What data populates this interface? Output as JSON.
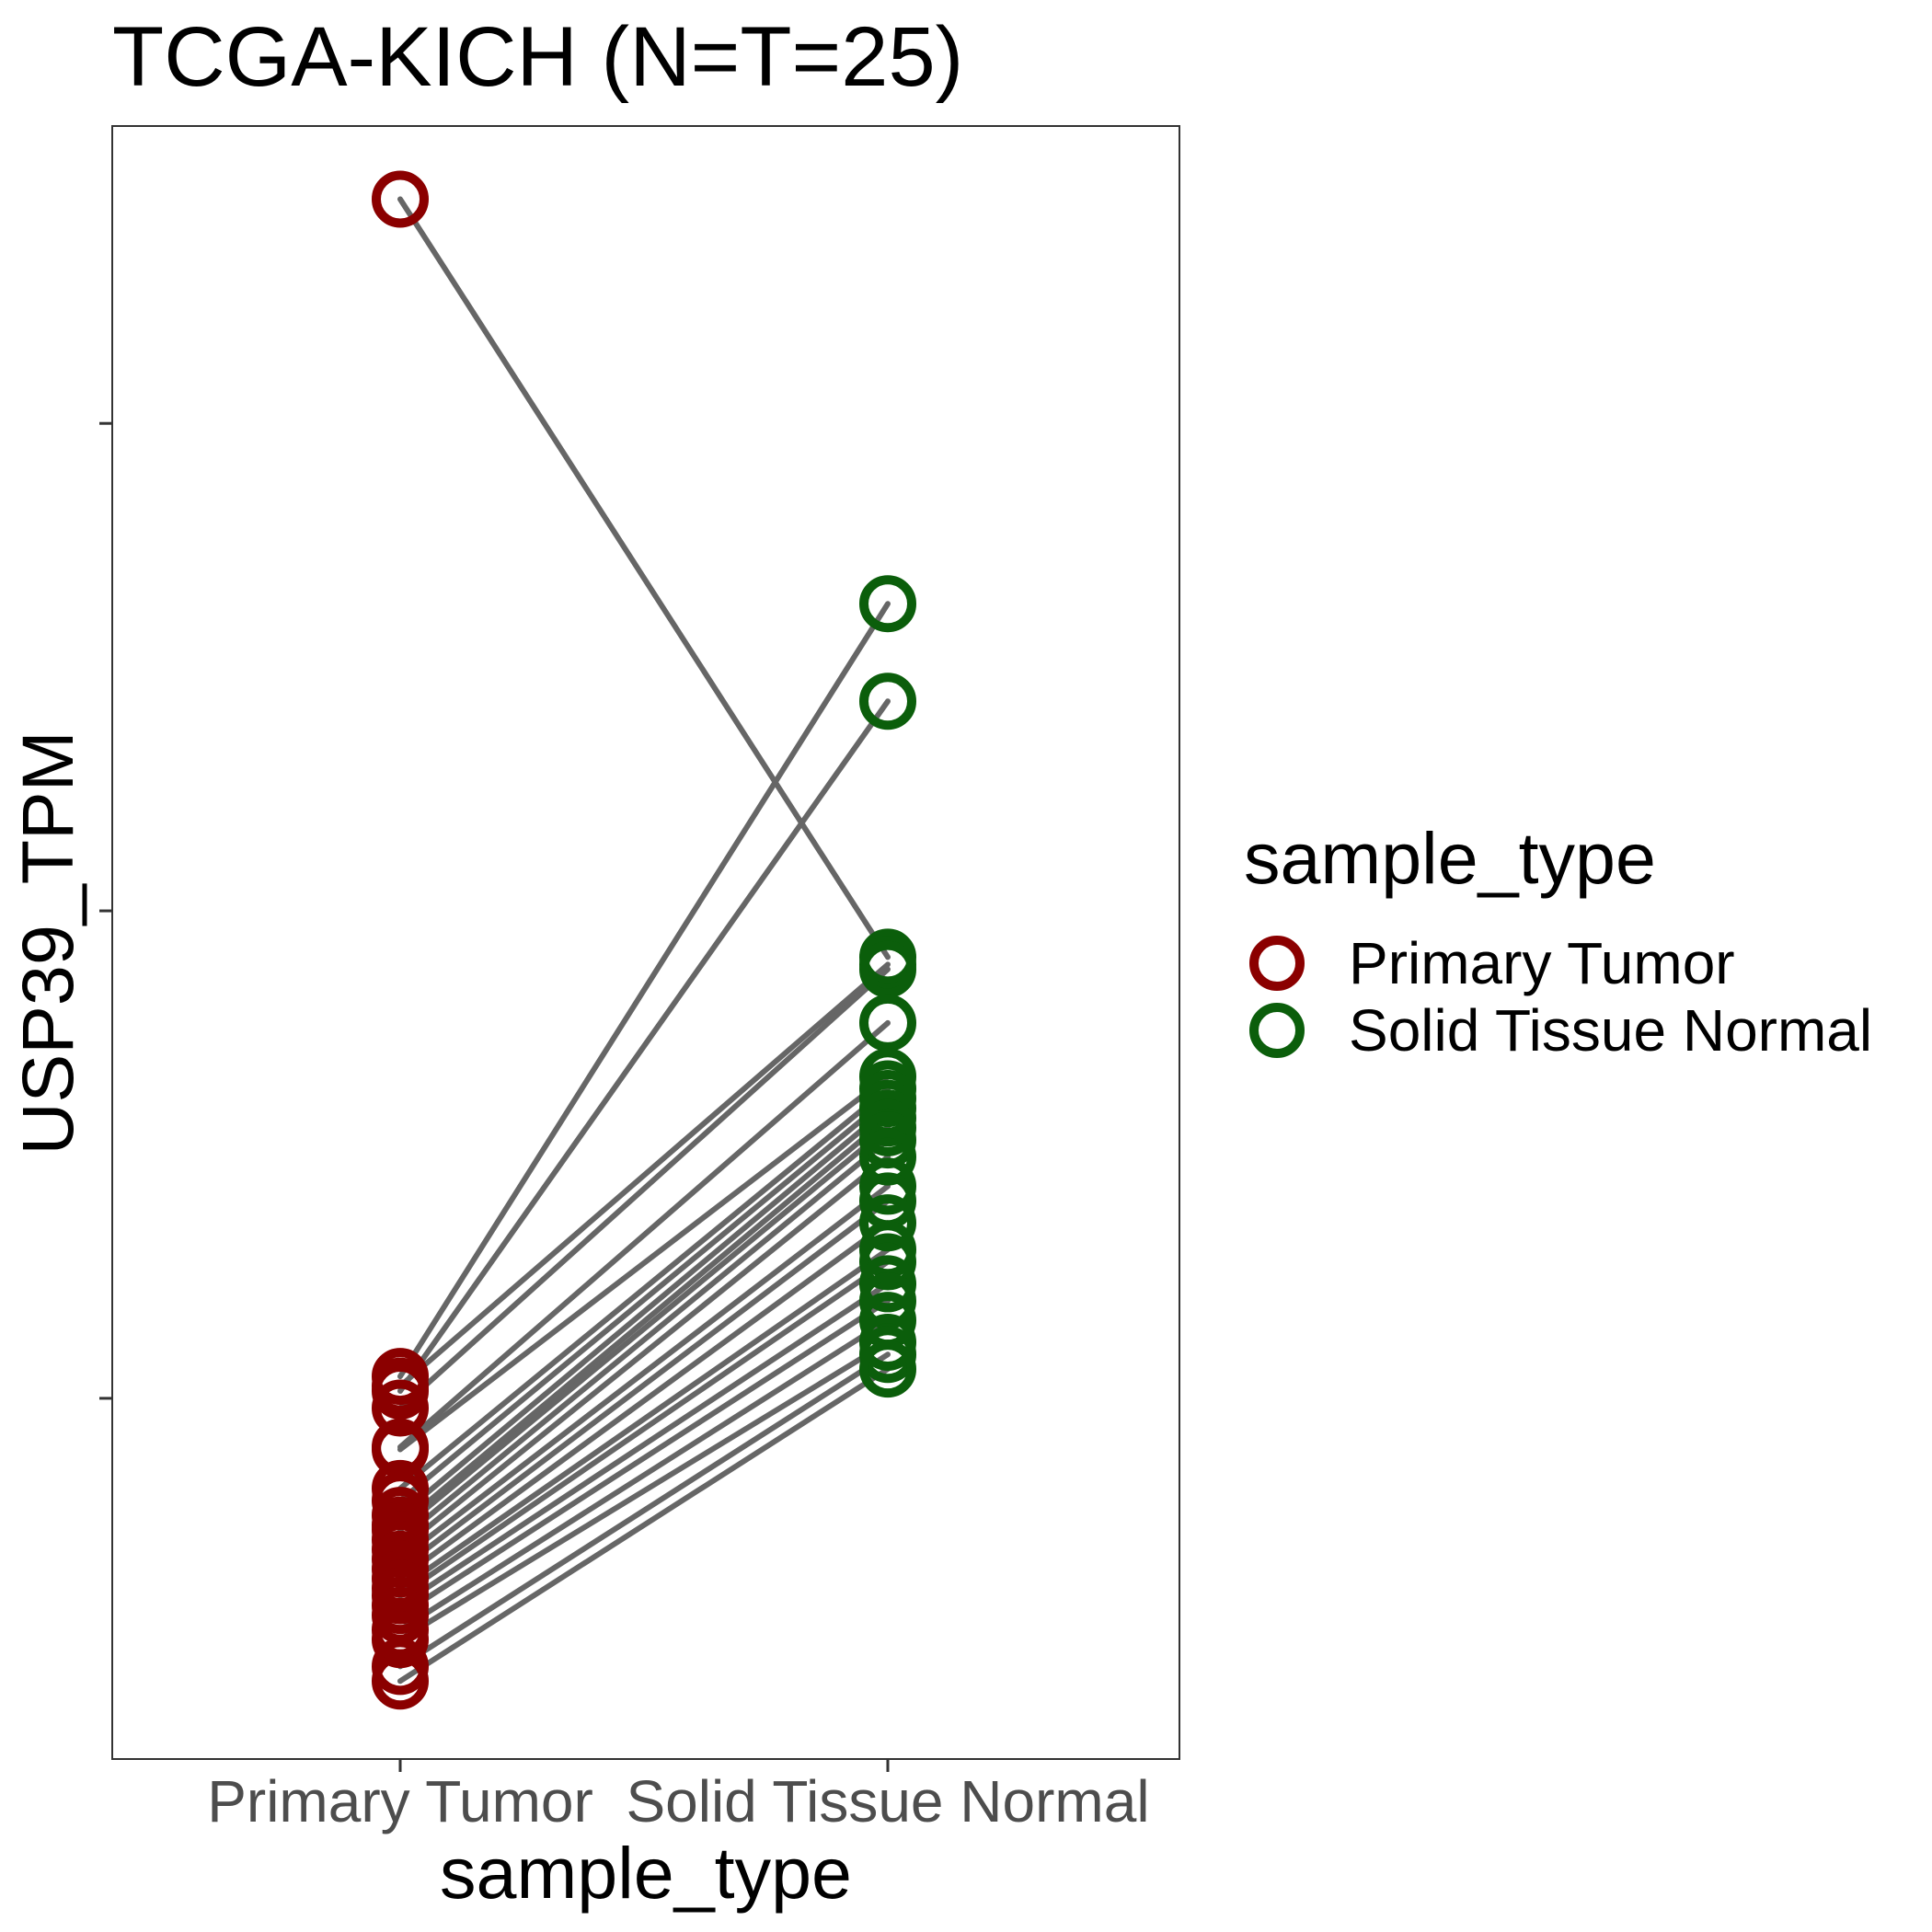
{
  "chart_data": {
    "type": "scatter",
    "title": "TCGA-KICH  (N=T=25)",
    "xlabel": "sample_type",
    "ylabel": "USP39_TPM",
    "categories": [
      "Primary Tumor",
      "Solid Tissue Normal"
    ],
    "y_tick_values": [
      20,
      40,
      60
    ],
    "y_tick_labels_shown": false,
    "ylim": [
      5.2,
      72.2
    ],
    "grid": false,
    "legend": {
      "title": "sample_type",
      "position": "right",
      "entries": [
        "Primary Tumor",
        "Solid Tissue Normal"
      ]
    },
    "colors": {
      "Primary Tumor": "#8b0000",
      "Solid Tissue Normal": "#0b5e0b",
      "line": "#666666"
    },
    "pairs": [
      {
        "tumor": 69.2,
        "normal": 38.1
      },
      {
        "tumor": 20.9,
        "normal": 52.6
      },
      {
        "tumor": 20.3,
        "normal": 48.6
      },
      {
        "tumor": 20.5,
        "normal": 37.8
      },
      {
        "tumor": 19.6,
        "normal": 37.6
      },
      {
        "tumor": 18.0,
        "normal": 35.4
      },
      {
        "tumor": 17.9,
        "normal": 33.2
      },
      {
        "tumor": 16.3,
        "normal": 32.7
      },
      {
        "tumor": 15.8,
        "normal": 32.3
      },
      {
        "tumor": 15.2,
        "normal": 31.9
      },
      {
        "tumor": 14.8,
        "normal": 31.5
      },
      {
        "tumor": 14.6,
        "normal": 31.1
      },
      {
        "tumor": 14.2,
        "normal": 30.6
      },
      {
        "tumor": 13.8,
        "normal": 29.9
      },
      {
        "tumor": 13.4,
        "normal": 28.7
      },
      {
        "tumor": 13.0,
        "normal": 28.1
      },
      {
        "tumor": 12.6,
        "normal": 27.2
      },
      {
        "tumor": 12.2,
        "normal": 26.1
      },
      {
        "tumor": 11.9,
        "normal": 25.6
      },
      {
        "tumor": 11.5,
        "normal": 24.7
      },
      {
        "tumor": 11.1,
        "normal": 24.0
      },
      {
        "tumor": 10.5,
        "normal": 23.2
      },
      {
        "tumor": 10.1,
        "normal": 22.3
      },
      {
        "tumor": 9.0,
        "normal": 21.8
      },
      {
        "tumor": 8.4,
        "normal": 21.2
      }
    ]
  }
}
